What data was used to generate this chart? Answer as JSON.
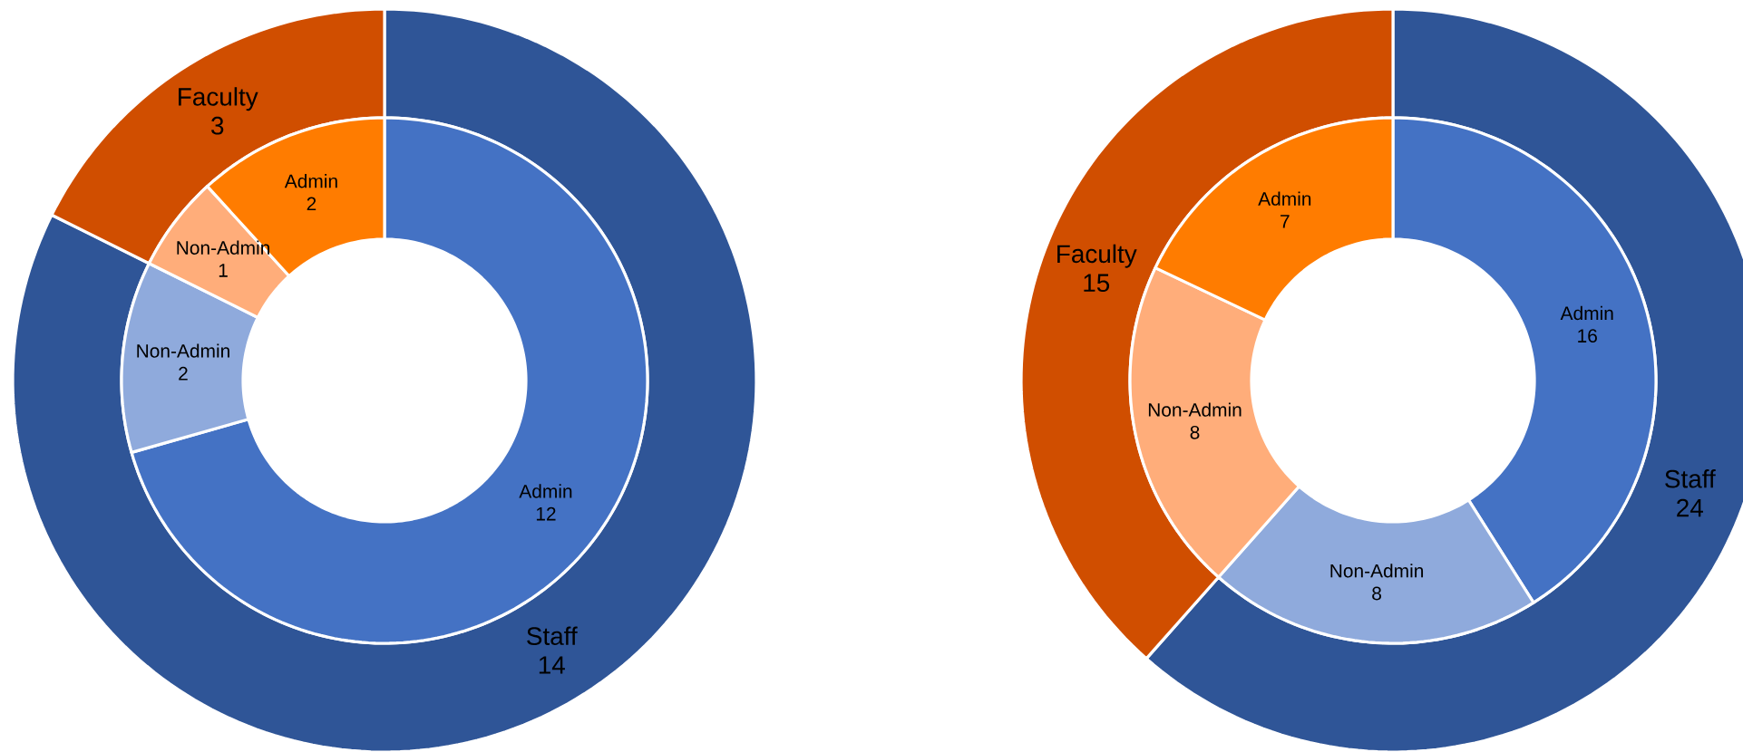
{
  "chart_data": [
    {
      "type": "donut",
      "data_labels": true,
      "categories": [
        "Staff",
        "Faculty"
      ],
      "values": [
        14,
        3
      ],
      "colors": [
        "#2f5597",
        "#d04e00"
      ]
    },
    {
      "type": "donut",
      "data_labels": true,
      "categories": [
        "Admin",
        "Non-Admin",
        "Non-Admin",
        "Admin"
      ],
      "values": [
        12,
        2,
        1,
        2
      ],
      "colors": [
        "#4472c4",
        "#8faadc",
        "#ffad7a",
        "#ff7c00"
      ]
    },
    {
      "type": "donut",
      "data_labels": true,
      "categories": [
        "Staff",
        "Faculty"
      ],
      "values": [
        24,
        15
      ],
      "colors": [
        "#2f5597",
        "#d04e00"
      ]
    },
    {
      "type": "donut",
      "data_labels": true,
      "categories": [
        "Admin",
        "Non-Admin",
        "Non-Admin",
        "Admin"
      ],
      "values": [
        16,
        8,
        8,
        7
      ],
      "colors": [
        "#4472c4",
        "#8faadc",
        "#ffad7a",
        "#ff7c00"
      ]
    }
  ]
}
